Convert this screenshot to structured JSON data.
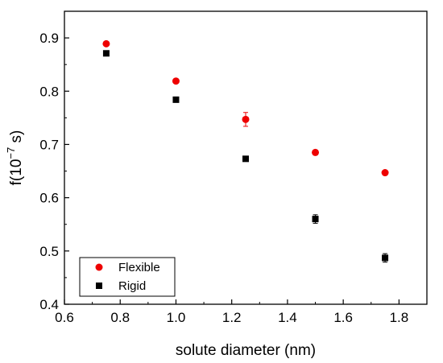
{
  "chart_data": {
    "type": "scatter",
    "title": "",
    "xlabel": "solute diameter (nm)",
    "ylabel": "f(10",
    "ylabel_exponent": "−7",
    "ylabel_unit": " s)",
    "xlim": [
      0.6,
      1.9
    ],
    "ylim": [
      0.4,
      0.95
    ],
    "xticks": [
      "0.6",
      "0.8",
      "1.0",
      "1.2",
      "1.4",
      "1.6",
      "1.8"
    ],
    "yticks": [
      "0.4",
      "0.5",
      "0.6",
      "0.7",
      "0.8",
      "0.9"
    ],
    "grid": false,
    "legend_position": "bottom-left",
    "series": [
      {
        "name": "Flexible",
        "marker": "circle",
        "color": "#ee0000",
        "x": [
          0.75,
          1.0,
          1.25,
          1.5,
          1.75
        ],
        "y": [
          0.889,
          0.819,
          0.747,
          0.685,
          0.647
        ],
        "err": [
          0.003,
          0.003,
          0.013,
          0.004,
          0.004
        ]
      },
      {
        "name": "Rigid",
        "marker": "square",
        "color": "#000000",
        "x": [
          0.75,
          1.0,
          1.25,
          1.5,
          1.75
        ],
        "y": [
          0.871,
          0.784,
          0.673,
          0.56,
          0.487
        ],
        "err": [
          0.003,
          0.003,
          0.003,
          0.008,
          0.008
        ]
      }
    ]
  }
}
